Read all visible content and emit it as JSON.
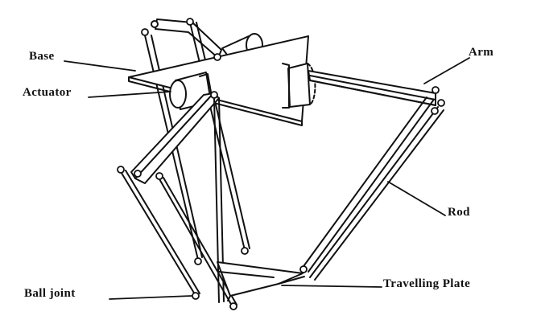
{
  "labels": {
    "base": "Base",
    "actuator": "Actuator",
    "arm": "Arm",
    "rod": "Rod",
    "ball_joint": "Ball joint",
    "travelling_plate": "Travelling Plate"
  },
  "colors": {
    "ink": "#111111",
    "background": "#ffffff",
    "fill": "#ffffff"
  }
}
